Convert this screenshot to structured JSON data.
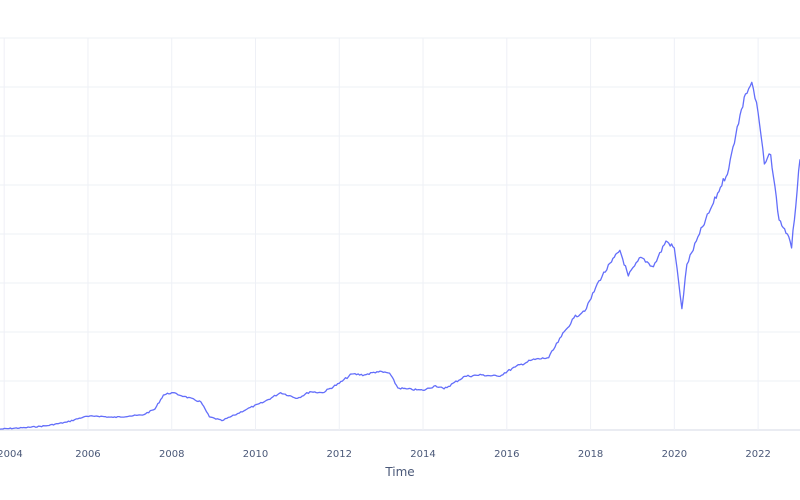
{
  "chart_data": {
    "type": "line",
    "title": "",
    "xlabel": "Time",
    "ylabel": "",
    "x_tick_labels": [
      "2004",
      "2006",
      "2008",
      "2010",
      "2012",
      "2014",
      "2016",
      "2018",
      "2020",
      "2022"
    ],
    "xlim": [
      2003.9,
      2023.0
    ],
    "ylim": [
      0,
      8.4
    ],
    "grid": true,
    "legend": "none",
    "series": [
      {
        "color": "#636efa",
        "x": [
          2003.9,
          2004.5,
          2005.0,
          2005.5,
          2005.9,
          2006.2,
          2006.6,
          2007.0,
          2007.3,
          2007.6,
          2007.8,
          2008.0,
          2008.3,
          2008.7,
          2008.9,
          2009.2,
          2009.5,
          2009.8,
          2010.2,
          2010.6,
          2011.0,
          2011.3,
          2011.6,
          2012.0,
          2012.3,
          2012.6,
          2012.9,
          2013.2,
          2013.4,
          2013.6,
          2014.0,
          2014.3,
          2014.5,
          2015.0,
          2015.4,
          2015.8,
          2016.2,
          2016.6,
          2017.0,
          2017.3,
          2017.6,
          2017.9,
          2018.2,
          2018.5,
          2018.7,
          2018.9,
          2019.2,
          2019.5,
          2019.8,
          2020.0,
          2020.1,
          2020.18,
          2020.3,
          2020.6,
          2020.9,
          2021.1,
          2021.3,
          2021.5,
          2021.7,
          2021.85,
          2022.0,
          2022.15,
          2022.3,
          2022.5,
          2022.7,
          2022.8,
          2023.0
        ],
        "values": [
          0.02,
          0.05,
          0.09,
          0.17,
          0.28,
          0.3,
          0.27,
          0.3,
          0.32,
          0.45,
          0.75,
          0.8,
          0.72,
          0.6,
          0.28,
          0.2,
          0.32,
          0.45,
          0.6,
          0.8,
          0.68,
          0.82,
          0.8,
          1.0,
          1.2,
          1.18,
          1.25,
          1.22,
          0.9,
          0.88,
          0.85,
          0.95,
          0.88,
          1.15,
          1.18,
          1.15,
          1.35,
          1.5,
          1.55,
          2.0,
          2.4,
          2.6,
          3.2,
          3.6,
          3.85,
          3.3,
          3.7,
          3.5,
          4.05,
          3.9,
          3.2,
          2.6,
          3.55,
          4.2,
          4.8,
          5.2,
          5.6,
          6.5,
          7.2,
          7.45,
          6.8,
          5.7,
          5.9,
          4.5,
          4.2,
          3.9,
          5.8
        ]
      }
    ]
  }
}
